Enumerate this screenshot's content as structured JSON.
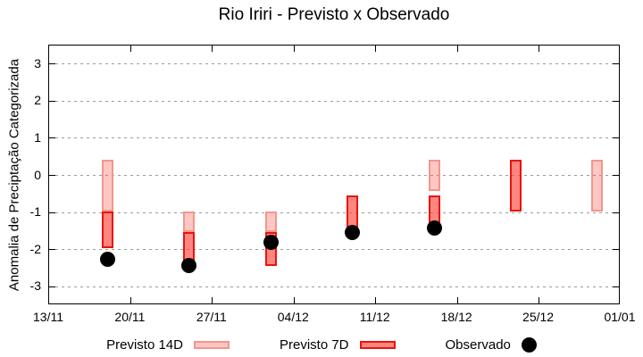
{
  "figure": {
    "background": "#ffffff"
  },
  "chart_data": {
    "type": "bar",
    "subtype": "ranged-bars-with-scatter-overlay",
    "title": "Rio Iriri - Previsto x Observado",
    "xlabel": "",
    "ylabel": "Anomalia de Preciptação Categorizada",
    "ylim": [
      -3.5,
      3.5
    ],
    "y_ticks": [
      -3,
      -2,
      -1,
      0,
      1,
      2,
      3
    ],
    "x_range_days": [
      0,
      49
    ],
    "x_tick_days": [
      0,
      7,
      14,
      21,
      28,
      35,
      42,
      49
    ],
    "x_tick_labels": [
      "13/11",
      "20/11",
      "27/11",
      "04/12",
      "11/12",
      "18/12",
      "25/12",
      "01/01"
    ],
    "grid": "horizontal dashed, visible through translucent bars",
    "grid_color": "#9b9b9b",
    "legend_position": "bottom-center",
    "categories": [
      "18/11",
      "25/11",
      "02/12",
      "09/12",
      "16/12",
      "23/12",
      "30/12"
    ],
    "category_days": [
      5,
      12,
      19,
      26,
      33,
      40,
      47
    ],
    "series": [
      {
        "name": "Previsto 14D",
        "type": "range-bar",
        "fill": "rgba(255,70,55,0.30)",
        "border": "#f2968c",
        "ranges": [
          {
            "date": "18/11",
            "day": 5,
            "top": 0.43,
            "bottom": -0.97
          },
          {
            "date": "25/11",
            "day": 12,
            "top": -0.97,
            "bottom": -1.52
          },
          {
            "date": "02/12",
            "day": 19,
            "top": -0.97,
            "bottom": -1.52
          },
          {
            "date": "16/12",
            "day": 33,
            "top": 0.43,
            "bottom": -0.43
          },
          {
            "date": "30/12",
            "day": 47,
            "top": 0.43,
            "bottom": -0.97
          }
        ]
      },
      {
        "name": "Previsto 7D",
        "type": "range-bar",
        "fill": "rgba(255,60,48,0.62)",
        "border": "#e8140c",
        "ranges": [
          {
            "date": "18/11",
            "day": 5,
            "top": -0.97,
            "bottom": -1.95
          },
          {
            "date": "25/11",
            "day": 12,
            "top": -1.52,
            "bottom": -2.5
          },
          {
            "date": "02/12",
            "day": 19,
            "top": -1.52,
            "bottom": -2.45
          },
          {
            "date": "09/12",
            "day": 26,
            "top": -0.55,
            "bottom": -1.5
          },
          {
            "date": "16/12",
            "day": 33,
            "top": -0.55,
            "bottom": -1.45
          },
          {
            "date": "23/12",
            "day": 40,
            "top": 0.43,
            "bottom": -0.97
          }
        ]
      },
      {
        "name": "Observado",
        "type": "scatter",
        "color": "#000000",
        "points": [
          {
            "date": "18/11",
            "day": 5,
            "value": -2.25
          },
          {
            "date": "25/11",
            "day": 12,
            "value": -2.42
          },
          {
            "date": "02/12",
            "day": 19,
            "value": -1.8
          },
          {
            "date": "09/12",
            "day": 26,
            "value": -1.55
          },
          {
            "date": "16/12",
            "day": 33,
            "value": -1.42
          }
        ]
      }
    ]
  },
  "legend": {
    "items": [
      {
        "label": "Previsto 14D",
        "swatch": "bar-14d"
      },
      {
        "label": "Previsto 7D",
        "swatch": "bar-7d"
      },
      {
        "label": "Observado",
        "swatch": "dot"
      }
    ]
  }
}
